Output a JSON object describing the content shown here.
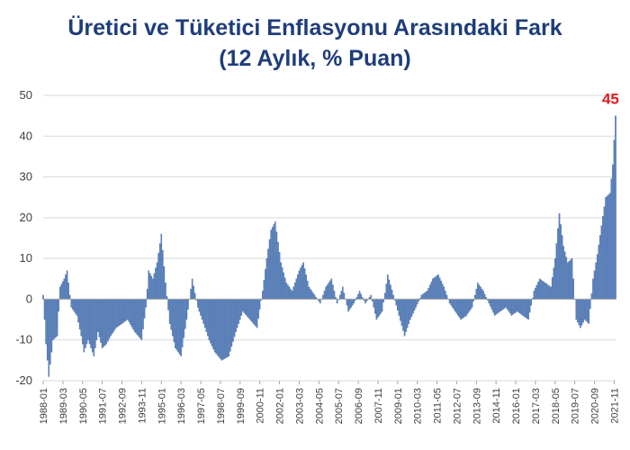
{
  "chart_data": {
    "type": "bar",
    "title": "Üretici ve Tüketici Enflasyonu Arasındaki Fark",
    "subtitle": "(12 Aylık, % Puan)",
    "xlabel": "",
    "ylabel": "",
    "ylim": [
      -20,
      50
    ],
    "yticks": [
      -20,
      -10,
      0,
      10,
      20,
      30,
      40,
      50
    ],
    "grid": true,
    "legend": "none",
    "bar_color": "#5b83bf",
    "annotation": {
      "text": "45",
      "x": "2021-11",
      "y": 45,
      "color": "#e31b1b"
    },
    "x_start": "1988-01",
    "x_end": "2021-12",
    "x_tick_labels": [
      "1988-01",
      "1989-03",
      "1990-05",
      "1991-07",
      "1992-09",
      "1993-11",
      "1995-01",
      "1996-03",
      "1997-05",
      "1998-07",
      "1999-09",
      "2000-11",
      "2002-01",
      "2003-03",
      "2004-05",
      "2005-07",
      "2006-09",
      "2007-11",
      "2009-01",
      "2010-03",
      "2011-05",
      "2012-07",
      "2013-09",
      "2014-11",
      "2016-01",
      "2017-03",
      "2018-05",
      "2019-07",
      "2020-09",
      "2021-11"
    ],
    "series": [
      {
        "values": [
          {
            "x": "1988-01",
            "y": 1
          },
          {
            "x": "1988-03",
            "y": -11
          },
          {
            "x": "1988-05",
            "y": -19
          },
          {
            "x": "1988-08",
            "y": -10
          },
          {
            "x": "1988-11",
            "y": -9
          },
          {
            "x": "1989-01",
            "y": 3
          },
          {
            "x": "1989-04",
            "y": 5
          },
          {
            "x": "1989-06",
            "y": 7
          },
          {
            "x": "1989-09",
            "y": -2
          },
          {
            "x": "1990-01",
            "y": -4
          },
          {
            "x": "1990-04",
            "y": -9
          },
          {
            "x": "1990-06",
            "y": -13
          },
          {
            "x": "1990-09",
            "y": -10
          },
          {
            "x": "1991-01",
            "y": -14
          },
          {
            "x": "1991-04",
            "y": -8
          },
          {
            "x": "1991-07",
            "y": -12
          },
          {
            "x": "1991-10",
            "y": -11
          },
          {
            "x": "1992-01",
            "y": -9
          },
          {
            "x": "1992-05",
            "y": -7
          },
          {
            "x": "1992-09",
            "y": -6
          },
          {
            "x": "1993-01",
            "y": -5
          },
          {
            "x": "1993-06",
            "y": -8
          },
          {
            "x": "1993-11",
            "y": -10
          },
          {
            "x": "1994-02",
            "y": -2
          },
          {
            "x": "1994-04",
            "y": 7
          },
          {
            "x": "1994-07",
            "y": 5
          },
          {
            "x": "1994-10",
            "y": 9
          },
          {
            "x": "1995-01",
            "y": 16
          },
          {
            "x": "1995-04",
            "y": 4
          },
          {
            "x": "1995-07",
            "y": -6
          },
          {
            "x": "1995-11",
            "y": -12
          },
          {
            "x": "1996-03",
            "y": -14
          },
          {
            "x": "1996-07",
            "y": -5
          },
          {
            "x": "1996-11",
            "y": 5
          },
          {
            "x": "1997-03",
            "y": -2
          },
          {
            "x": "1997-07",
            "y": -6
          },
          {
            "x": "1997-11",
            "y": -10
          },
          {
            "x": "1998-03",
            "y": -13
          },
          {
            "x": "1998-08",
            "y": -15
          },
          {
            "x": "1999-01",
            "y": -14
          },
          {
            "x": "1999-06",
            "y": -8
          },
          {
            "x": "1999-11",
            "y": -3
          },
          {
            "x": "2000-04",
            "y": -5
          },
          {
            "x": "2000-09",
            "y": -7
          },
          {
            "x": "2001-01",
            "y": 2
          },
          {
            "x": "2001-04",
            "y": 10
          },
          {
            "x": "2001-07",
            "y": 17
          },
          {
            "x": "2001-10",
            "y": 19
          },
          {
            "x": "2002-02",
            "y": 9
          },
          {
            "x": "2002-06",
            "y": 4
          },
          {
            "x": "2002-10",
            "y": 2
          },
          {
            "x": "2003-03",
            "y": 7
          },
          {
            "x": "2003-06",
            "y": 9
          },
          {
            "x": "2003-10",
            "y": 3
          },
          {
            "x": "2004-02",
            "y": 1
          },
          {
            "x": "2004-06",
            "y": -1
          },
          {
            "x": "2004-10",
            "y": 3
          },
          {
            "x": "2005-02",
            "y": 5
          },
          {
            "x": "2005-06",
            "y": -1
          },
          {
            "x": "2005-10",
            "y": 3
          },
          {
            "x": "2006-02",
            "y": -3
          },
          {
            "x": "2006-06",
            "y": -1
          },
          {
            "x": "2006-10",
            "y": 2
          },
          {
            "x": "2007-02",
            "y": -1
          },
          {
            "x": "2007-06",
            "y": 1
          },
          {
            "x": "2007-10",
            "y": -5
          },
          {
            "x": "2008-02",
            "y": -3
          },
          {
            "x": "2008-06",
            "y": 6
          },
          {
            "x": "2008-10",
            "y": 1
          },
          {
            "x": "2009-02",
            "y": -4
          },
          {
            "x": "2009-06",
            "y": -9
          },
          {
            "x": "2009-10",
            "y": -5
          },
          {
            "x": "2010-02",
            "y": -2
          },
          {
            "x": "2010-06",
            "y": 1
          },
          {
            "x": "2010-10",
            "y": 2
          },
          {
            "x": "2011-02",
            "y": 5
          },
          {
            "x": "2011-06",
            "y": 6
          },
          {
            "x": "2011-10",
            "y": 3
          },
          {
            "x": "2012-02",
            "y": -1
          },
          {
            "x": "2012-06",
            "y": -3
          },
          {
            "x": "2012-10",
            "y": -5
          },
          {
            "x": "2013-02",
            "y": -4
          },
          {
            "x": "2013-06",
            "y": -2
          },
          {
            "x": "2013-10",
            "y": 4
          },
          {
            "x": "2014-02",
            "y": 2
          },
          {
            "x": "2014-06",
            "y": -1
          },
          {
            "x": "2014-10",
            "y": -4
          },
          {
            "x": "2015-02",
            "y": -3
          },
          {
            "x": "2015-06",
            "y": -2
          },
          {
            "x": "2015-10",
            "y": -4
          },
          {
            "x": "2016-02",
            "y": -3
          },
          {
            "x": "2016-06",
            "y": -4
          },
          {
            "x": "2016-10",
            "y": -5
          },
          {
            "x": "2017-02",
            "y": 2
          },
          {
            "x": "2017-06",
            "y": 5
          },
          {
            "x": "2017-10",
            "y": 4
          },
          {
            "x": "2018-02",
            "y": 3
          },
          {
            "x": "2018-05",
            "y": 10
          },
          {
            "x": "2018-08",
            "y": 21
          },
          {
            "x": "2018-11",
            "y": 13
          },
          {
            "x": "2019-02",
            "y": 9
          },
          {
            "x": "2019-05",
            "y": 10
          },
          {
            "x": "2019-08",
            "y": -5
          },
          {
            "x": "2019-11",
            "y": -7
          },
          {
            "x": "2020-02",
            "y": -5
          },
          {
            "x": "2020-05",
            "y": -6
          },
          {
            "x": "2020-08",
            "y": 5
          },
          {
            "x": "2020-11",
            "y": 11
          },
          {
            "x": "2021-02",
            "y": 18
          },
          {
            "x": "2021-05",
            "y": 25
          },
          {
            "x": "2021-08",
            "y": 26
          },
          {
            "x": "2021-10",
            "y": 33
          },
          {
            "x": "2021-12",
            "y": 45
          }
        ]
      }
    ]
  }
}
